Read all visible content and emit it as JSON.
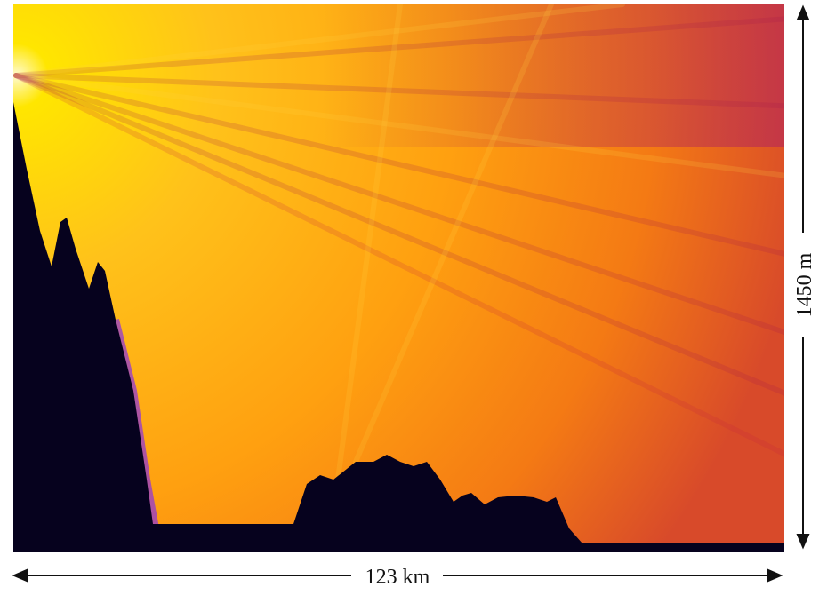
{
  "figure": {
    "width_label": "123 km",
    "height_label": "1450 m"
  }
}
